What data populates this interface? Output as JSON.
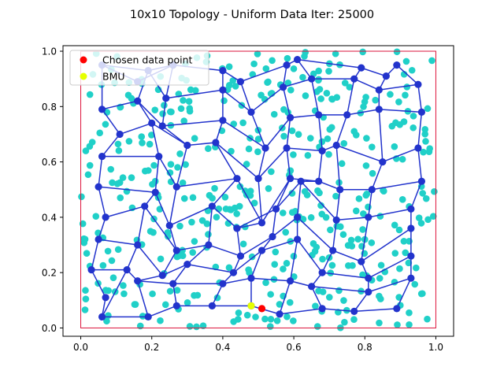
{
  "chart_data": {
    "type": "scatter",
    "title": "10x10 Topology - Uniform Data Iter: 25000",
    "xlabel": "",
    "ylabel": "",
    "xlim": [
      -0.05,
      1.05
    ],
    "ylim": [
      -0.03,
      1.02
    ],
    "x_ticks": [
      0.0,
      0.2,
      0.4,
      0.6,
      0.8,
      1.0
    ],
    "y_ticks": [
      0.0,
      0.2,
      0.4,
      0.6,
      0.8,
      1.0
    ],
    "x_tick_labels": [
      "0.0",
      "0.2",
      "0.4",
      "0.6",
      "0.8",
      "1.0"
    ],
    "y_tick_labels": [
      "0.0",
      "0.2",
      "0.4",
      "0.6",
      "0.8",
      "1.0"
    ],
    "grid": false,
    "legend_position": "top-left",
    "legend": [
      {
        "label": "Chosen data point",
        "color": "#ff0000"
      },
      {
        "label": "BMU",
        "color": "#e6ff00"
      }
    ],
    "colors": {
      "data_points": "#20d0c8",
      "som_nodes": "#2233cc",
      "som_edges": "#2233cc",
      "bounding_box": "#dc143c",
      "chosen_point": "#ff0000",
      "bmu": "#e6ff00"
    },
    "bounding_box": {
      "x": [
        0,
        1
      ],
      "y": [
        0,
        1
      ]
    },
    "chosen_data_point": {
      "x": 0.51,
      "y": 0.07
    },
    "bmu": {
      "x": 0.48,
      "y": 0.08
    },
    "som_grid": {
      "rows": 10,
      "cols": 10,
      "nodes": [
        [
          [
            0.07,
            0.11
          ],
          [
            0.03,
            0.21
          ],
          [
            0.05,
            0.32
          ],
          [
            0.07,
            0.4
          ],
          [
            0.05,
            0.51
          ],
          [
            0.06,
            0.62
          ],
          [
            0.11,
            0.7
          ],
          [
            0.06,
            0.79
          ],
          [
            0.06,
            0.95
          ],
          [
            0.16,
            0.89
          ]
        ],
        [
          [
            0.06,
            0.04
          ],
          [
            0.13,
            0.21
          ],
          [
            0.16,
            0.3
          ],
          [
            0.18,
            0.44
          ],
          [
            0.21,
            0.49
          ],
          [
            0.22,
            0.62
          ],
          [
            0.2,
            0.74
          ],
          [
            0.16,
            0.82
          ],
          [
            0.19,
            0.93
          ],
          [
            0.26,
            0.95
          ]
        ],
        [
          [
            0.19,
            0.04
          ],
          [
            0.16,
            0.17
          ],
          [
            0.23,
            0.19
          ],
          [
            0.27,
            0.28
          ],
          [
            0.25,
            0.37
          ],
          [
            0.27,
            0.51
          ],
          [
            0.3,
            0.66
          ],
          [
            0.23,
            0.73
          ],
          [
            0.24,
            0.83
          ],
          [
            0.26,
            0.95
          ]
        ],
        [
          [
            0.27,
            0.08
          ],
          [
            0.26,
            0.16
          ],
          [
            0.3,
            0.23
          ],
          [
            0.36,
            0.3
          ],
          [
            0.37,
            0.44
          ],
          [
            0.44,
            0.54
          ],
          [
            0.38,
            0.67
          ],
          [
            0.4,
            0.75
          ],
          [
            0.4,
            0.86
          ],
          [
            0.4,
            0.93
          ]
        ],
        [
          [
            0.37,
            0.08
          ],
          [
            0.4,
            0.16
          ],
          [
            0.43,
            0.2
          ],
          [
            0.45,
            0.26
          ],
          [
            0.44,
            0.36
          ],
          [
            0.51,
            0.38
          ],
          [
            0.5,
            0.54
          ],
          [
            0.52,
            0.65
          ],
          [
            0.48,
            0.78
          ],
          [
            0.45,
            0.89
          ]
        ],
        [
          [
            0.48,
            0.08
          ],
          [
            0.48,
            0.18
          ],
          [
            0.51,
            0.28
          ],
          [
            0.54,
            0.33
          ],
          [
            0.55,
            0.43
          ],
          [
            0.59,
            0.54
          ],
          [
            0.58,
            0.65
          ],
          [
            0.59,
            0.76
          ],
          [
            0.57,
            0.87
          ],
          [
            0.58,
            0.95
          ]
        ],
        [
          [
            0.56,
            0.05
          ],
          [
            0.59,
            0.17
          ],
          [
            0.61,
            0.32
          ],
          [
            0.61,
            0.4
          ],
          [
            0.62,
            0.53
          ],
          [
            0.67,
            0.53
          ],
          [
            0.68,
            0.64
          ],
          [
            0.67,
            0.77
          ],
          [
            0.65,
            0.9
          ],
          [
            0.61,
            0.97
          ]
        ],
        [
          [
            0.68,
            0.07
          ],
          [
            0.65,
            0.15
          ],
          [
            0.68,
            0.2
          ],
          [
            0.71,
            0.28
          ],
          [
            0.72,
            0.39
          ],
          [
            0.73,
            0.5
          ],
          [
            0.72,
            0.66
          ],
          [
            0.75,
            0.77
          ],
          [
            0.77,
            0.9
          ],
          [
            0.79,
            0.94
          ]
        ],
        [
          [
            0.77,
            0.06
          ],
          [
            0.81,
            0.13
          ],
          [
            0.81,
            0.18
          ],
          [
            0.79,
            0.24
          ],
          [
            0.81,
            0.4
          ],
          [
            0.82,
            0.5
          ],
          [
            0.85,
            0.6
          ],
          [
            0.84,
            0.79
          ],
          [
            0.84,
            0.86
          ],
          [
            0.86,
            0.91
          ]
        ],
        [
          [
            0.89,
            0.07
          ],
          [
            0.93,
            0.18
          ],
          [
            0.93,
            0.26
          ],
          [
            0.93,
            0.36
          ],
          [
            0.93,
            0.43
          ],
          [
            0.96,
            0.53
          ],
          [
            0.95,
            0.65
          ],
          [
            0.96,
            0.78
          ],
          [
            0.95,
            0.88
          ],
          [
            0.89,
            0.95
          ]
        ]
      ]
    }
  }
}
